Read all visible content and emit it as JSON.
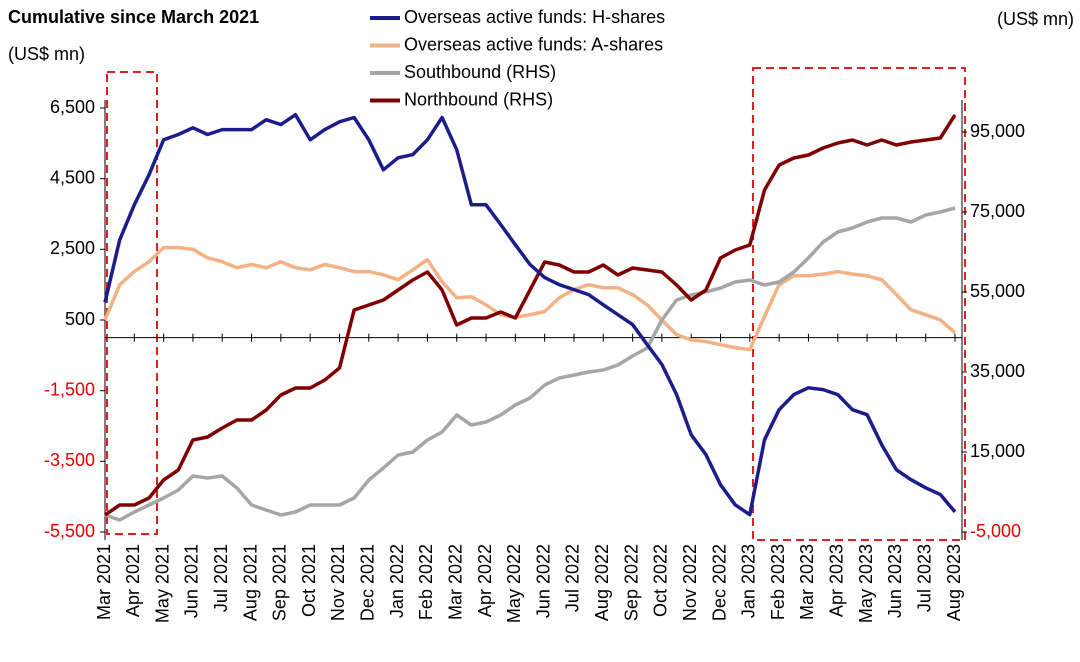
{
  "chart_data": {
    "type": "line",
    "title": "Cumulative since March 2021",
    "ylabel": "(US$ mn)",
    "y2label": "(US$ mn)",
    "categories": [
      "Mar 2021",
      null,
      "Apr 2021",
      null,
      "May 2021",
      null,
      "Jun 2021",
      null,
      "Jul 2021",
      null,
      "Aug 2021",
      null,
      "Sep 2021",
      null,
      "Oct 2021",
      null,
      "Nov 2021",
      null,
      "Dec 2021",
      null,
      "Jan 2022",
      null,
      "Feb 2022",
      null,
      "Mar 2022",
      null,
      "Apr 2022",
      null,
      "May 2022",
      null,
      "Jun 2022",
      null,
      "Jul 2022",
      null,
      "Aug 2022",
      null,
      "Sep 2022",
      null,
      "Oct 2022",
      null,
      "Nov 2022",
      null,
      "Dec 2022",
      null,
      "Jan 2023",
      null,
      "Feb 2023",
      null,
      "Mar 2023",
      null,
      "Apr 2023",
      null,
      "May 2023",
      null,
      "Jun 2023",
      null,
      "Jul 2023",
      null,
      "Aug 2023"
    ],
    "series": [
      {
        "name": "Overseas active funds: H-shares",
        "color": "#1c1c8a",
        "values": [
          1000,
          2770,
          3760,
          4610,
          5600,
          5750,
          5940,
          5750,
          5890,
          5890,
          5890,
          6170,
          6030,
          6310,
          5600,
          5890,
          6110,
          6230,
          5600,
          4750,
          5090,
          5180,
          5600,
          6230,
          5320,
          3760,
          3760,
          3200,
          2630,
          2070,
          1700,
          1500,
          1360,
          1220,
          930,
          650,
          370,
          -200,
          -760,
          -1610,
          -2750,
          -3310,
          -4160,
          -4730,
          -5010,
          -2890,
          -2040,
          -1610,
          -1420,
          -1470,
          -1610,
          -2040,
          -2180,
          -3030,
          -3740,
          -4020,
          -4250,
          -4440,
          -4930
        ]
      },
      {
        "name": "Overseas active funds: A-shares",
        "color": "#f4b183",
        "values": [
          500,
          1500,
          1870,
          2150,
          2550,
          2550,
          2500,
          2260,
          2150,
          1980,
          2070,
          1980,
          2150,
          1980,
          1920,
          2070,
          1980,
          1870,
          1870,
          1780,
          1640,
          1920,
          2210,
          1580,
          1130,
          1160,
          930,
          650,
          570,
          650,
          740,
          1130,
          1360,
          1500,
          1410,
          1410,
          1220,
          930,
          500,
          85,
          -60,
          -110,
          -200,
          -280,
          -340,
          600,
          1500,
          1750,
          1750,
          1800,
          1870,
          1800,
          1750,
          1640,
          1220,
          790,
          650,
          500,
          140
        ]
      },
      {
        "name": "Southbound (RHS)",
        "color": "#a6a6a6",
        "axis": "y2",
        "values": [
          -750,
          -2000,
          0,
          1750,
          3500,
          5500,
          9000,
          8500,
          9000,
          6000,
          1750,
          500,
          -750,
          0,
          1750,
          1750,
          1750,
          3500,
          8000,
          11000,
          14250,
          15000,
          18000,
          20000,
          24250,
          21750,
          22500,
          24250,
          26750,
          28500,
          31750,
          33500,
          34250,
          35000,
          35500,
          36750,
          39000,
          41000,
          48000,
          53000,
          54250,
          55000,
          56000,
          57500,
          58000,
          56750,
          57500,
          60000,
          63500,
          67500,
          70000,
          71000,
          72500,
          73500,
          73500,
          72500,
          74250,
          75000,
          76000
        ]
      },
      {
        "name": "Northbound (RHS)",
        "color": "#7f0000",
        "axis": "y2",
        "values": [
          -750,
          1750,
          1750,
          3500,
          8000,
          10500,
          18000,
          18750,
          21000,
          23000,
          23000,
          25500,
          29250,
          31000,
          31000,
          33000,
          36000,
          50500,
          51750,
          53000,
          55500,
          58000,
          60000,
          55500,
          46750,
          48500,
          48500,
          50000,
          48500,
          55500,
          62500,
          61750,
          60000,
          60000,
          61750,
          59250,
          61000,
          60500,
          60000,
          56750,
          53000,
          55500,
          63500,
          65500,
          66750,
          80500,
          86750,
          88500,
          89250,
          91000,
          92250,
          93000,
          91750,
          93000,
          91750,
          92500,
          93000,
          93500,
          99250
        ]
      }
    ],
    "ylim": [
      -5500,
      6500
    ],
    "yticks": [
      {
        "value": 6500,
        "label": "6,500"
      },
      {
        "value": 4500,
        "label": "4,500"
      },
      {
        "value": 2500,
        "label": "2,500"
      },
      500,
      {
        "value": -1500,
        "label": "-1,500"
      },
      {
        "value": -3500,
        "label": "-3,500"
      },
      {
        "value": -5500,
        "label": "-5,500"
      }
    ],
    "y2lim": [
      -5000,
      101000
    ],
    "y2ticks": [
      {
        "value": 95000,
        "label": "95,000"
      },
      {
        "value": 75000,
        "label": "75,000"
      },
      {
        "value": 55000,
        "label": "55,000"
      },
      {
        "value": 35000,
        "label": "35,000"
      },
      {
        "value": 15000,
        "label": "15,000"
      },
      {
        "value": -5000,
        "label": "-5,000"
      }
    ],
    "negative_tick_color": "#e00000"
  }
}
